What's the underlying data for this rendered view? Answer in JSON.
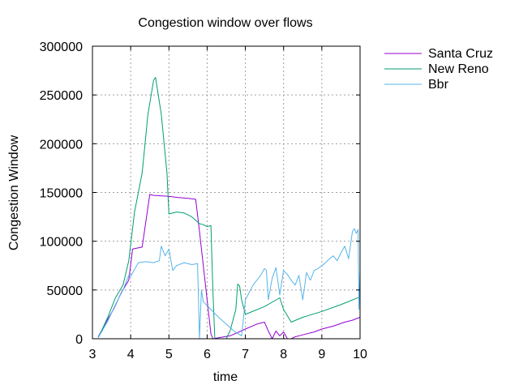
{
  "chart_data": {
    "type": "line",
    "title": "Congestion window over flows",
    "xlabel": "time",
    "ylabel": "Congestion Window",
    "xlim": [
      3,
      10
    ],
    "ylim": [
      0,
      300000
    ],
    "xticks": [
      3,
      4,
      5,
      6,
      7,
      8,
      9,
      10
    ],
    "xtick_labels": [
      "3",
      "4",
      "5",
      "6",
      "7",
      "8",
      "9",
      "10"
    ],
    "yticks": [
      0,
      50000,
      100000,
      150000,
      200000,
      250000,
      300000
    ],
    "ytick_labels": [
      "0",
      "50000",
      "100000",
      "150000",
      "200000",
      "250000",
      "300000"
    ],
    "grid": true,
    "legend_position": "outside-top-right",
    "series": [
      {
        "name": "Santa Cruz",
        "color": "#9400d3",
        "x": [
          3.15,
          3.4,
          3.55,
          3.75,
          3.95,
          4.05,
          4.3,
          4.5,
          4.6,
          5.0,
          5.2,
          5.5,
          5.7,
          5.8,
          6.0,
          6.1,
          6.15,
          6.3,
          6.6,
          7.0,
          7.3,
          7.5,
          7.6,
          7.7,
          7.8,
          7.9,
          8.0,
          8.1,
          8.2,
          8.3,
          8.5,
          8.8,
          9.0,
          9.3,
          9.6,
          9.8,
          10.0
        ],
        "values": [
          2000,
          20000,
          30000,
          47000,
          60000,
          92000,
          94000,
          148000,
          147000,
          146000,
          145000,
          144000,
          143000,
          110000,
          40000,
          5000,
          0,
          1000,
          3000,
          10000,
          15000,
          17000,
          8000,
          0,
          8000,
          3000,
          7000,
          0,
          0,
          2000,
          4000,
          7000,
          10000,
          13000,
          17000,
          19000,
          22000
        ]
      },
      {
        "name": "New Reno",
        "color": "#009e73",
        "x": [
          3.15,
          3.4,
          3.6,
          3.8,
          3.95,
          4.1,
          4.3,
          4.45,
          4.6,
          4.65,
          4.8,
          4.95,
          5.0,
          5.2,
          5.4,
          5.6,
          5.8,
          5.9,
          6.0,
          6.1,
          6.15,
          6.2,
          6.25,
          6.3,
          6.4,
          6.5,
          6.6,
          6.75,
          6.8,
          6.85,
          6.9,
          7.0,
          7.5,
          7.9,
          8.0,
          8.2,
          8.5,
          9.0,
          9.5,
          10.0
        ],
        "values": [
          1000,
          22000,
          42000,
          55000,
          80000,
          130000,
          170000,
          230000,
          265000,
          268000,
          230000,
          170000,
          128000,
          130000,
          129000,
          125000,
          118000,
          117000,
          115000,
          116000,
          50000,
          0,
          0,
          0,
          0,
          0,
          8000,
          30000,
          56000,
          54000,
          40000,
          25000,
          33000,
          42000,
          30000,
          17000,
          22000,
          28000,
          35000,
          43000
        ]
      },
      {
        "name": "Bbr",
        "color": "#56b4e9",
        "x": [
          3.15,
          3.4,
          3.6,
          3.8,
          3.95,
          4.0,
          4.2,
          4.4,
          4.6,
          4.75,
          4.8,
          4.9,
          5.0,
          5.1,
          5.2,
          5.4,
          5.6,
          5.75,
          5.8,
          5.85,
          5.9,
          6.1,
          6.3,
          6.5,
          6.7,
          6.9,
          7.0,
          7.2,
          7.4,
          7.5,
          7.55,
          7.6,
          7.7,
          7.8,
          7.9,
          8.0,
          8.1,
          8.2,
          8.3,
          8.4,
          8.5,
          8.6,
          8.7,
          8.8,
          8.9,
          9.0,
          9.1,
          9.2,
          9.3,
          9.4,
          9.5,
          9.6,
          9.7,
          9.8,
          9.85,
          9.9,
          9.95,
          9.97,
          10.0
        ],
        "values": [
          1000,
          18000,
          35000,
          50000,
          65000,
          64000,
          78000,
          79000,
          78000,
          80000,
          95000,
          85000,
          92000,
          70000,
          75000,
          78000,
          76000,
          77000,
          0,
          50000,
          38000,
          30000,
          22000,
          15000,
          8000,
          3000,
          40000,
          55000,
          65000,
          72000,
          70000,
          40000,
          62000,
          73000,
          45000,
          70000,
          66000,
          60000,
          55000,
          65000,
          40000,
          68000,
          60000,
          70000,
          72000,
          75000,
          78000,
          82000,
          85000,
          80000,
          88000,
          95000,
          82000,
          110000,
          113000,
          108000,
          112000,
          30000,
          70000
        ]
      }
    ]
  }
}
